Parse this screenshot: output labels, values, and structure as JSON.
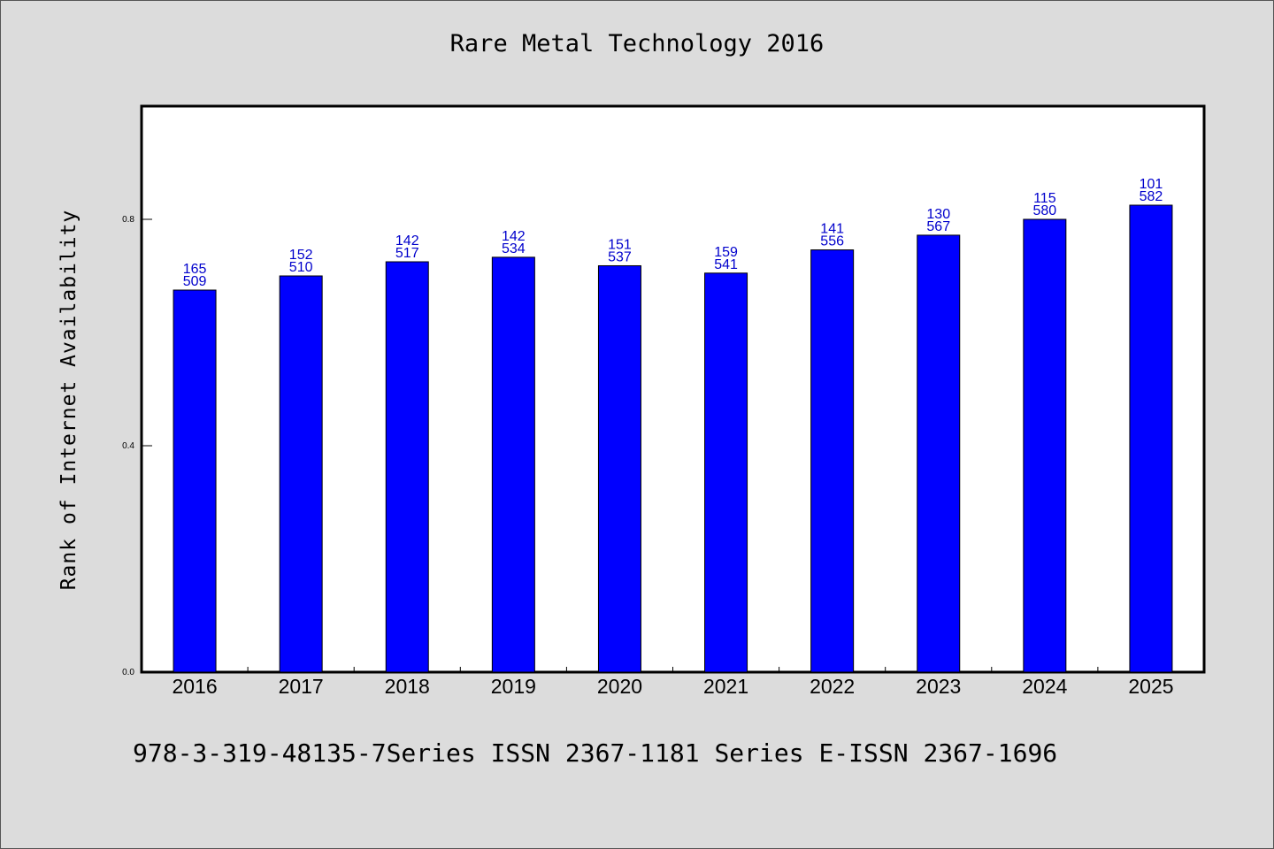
{
  "chart_data": {
    "type": "bar",
    "title": "Rare Metal Technology 2016",
    "xlabel": "",
    "ylabel": "Rank of Internet Availability",
    "categories": [
      "2016",
      "2017",
      "2018",
      "2019",
      "2020",
      "2021",
      "2022",
      "2023",
      "2024",
      "2025"
    ],
    "values": [
      0.675,
      0.7,
      0.725,
      0.733,
      0.718,
      0.705,
      0.746,
      0.772,
      0.8,
      0.825
    ],
    "data_labels_top": [
      "165",
      "152",
      "142",
      "142",
      "151",
      "159",
      "141",
      "130",
      "115",
      "101"
    ],
    "data_labels_bottom": [
      "509",
      "510",
      "517",
      "534",
      "537",
      "541",
      "556",
      "567",
      "580",
      "582"
    ],
    "ylim": [
      0,
      1.0
    ],
    "yticks": [
      0.0,
      0.4,
      0.8
    ],
    "ytick_labels": [
      "0.0",
      "0.4",
      "0.8"
    ],
    "grid": false,
    "colors": {
      "bar": "#0000ff",
      "label": "#0000cc",
      "background": "#dcdcdc",
      "plot_background": "#ffffff"
    }
  },
  "footer": "978-3-319-48135-7Series ISSN 2367-1181 Series E-ISSN 2367-1696"
}
